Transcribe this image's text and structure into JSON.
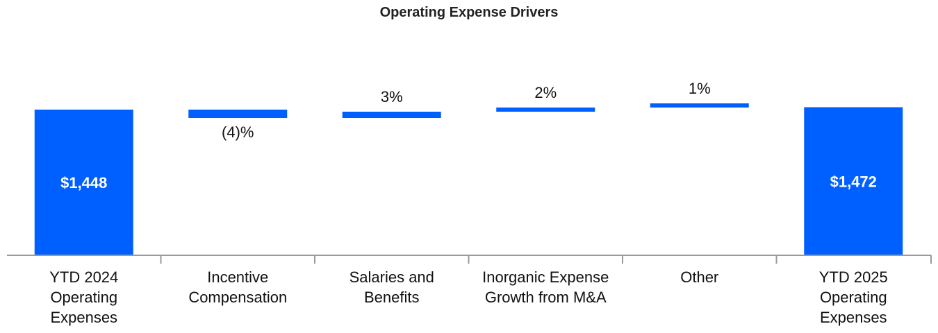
{
  "chart_data": {
    "type": "bar",
    "subtype": "waterfall",
    "title": "Operating Expense Drivers",
    "xlabel": "",
    "ylabel": "",
    "grid": false,
    "color": "#0060FF",
    "bars": [
      {
        "kind": "total",
        "label_lines": [
          "YTD 2024",
          "Operating",
          "Expenses"
        ],
        "value": 1448,
        "value_label": "$1,448"
      },
      {
        "kind": "change",
        "label_lines": [
          "Incentive",
          "Compensation"
        ],
        "percent": -4,
        "value_label": "(4)%"
      },
      {
        "kind": "change",
        "label_lines": [
          "Salaries and",
          "Benefits"
        ],
        "percent": 3,
        "value_label": "3%"
      },
      {
        "kind": "change",
        "label_lines": [
          "Inorganic Expense",
          "Growth from M&A"
        ],
        "percent": 2,
        "value_label": "2%"
      },
      {
        "kind": "change",
        "label_lines": [
          "Other"
        ],
        "percent": 1,
        "value_label": "1%"
      },
      {
        "kind": "total",
        "label_lines": [
          "YTD 2025",
          "Operating",
          "Expenses"
        ],
        "value": 1472,
        "value_label": "$1,472"
      }
    ]
  }
}
